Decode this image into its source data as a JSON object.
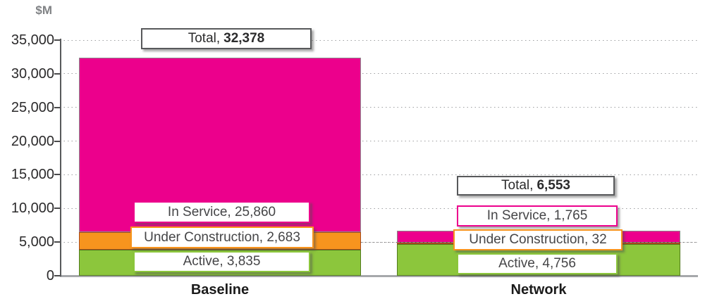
{
  "chart_data": {
    "type": "bar",
    "stacked": true,
    "unit_label": "$M",
    "categories": [
      "Baseline",
      "Network"
    ],
    "series": [
      {
        "name": "Active",
        "color": "#8CC63C",
        "stroke": "#527B1E",
        "values": [
          3835,
          4756
        ]
      },
      {
        "name": "Under Construction",
        "color": "#F7941E",
        "stroke": "#A8481B",
        "values": [
          2683,
          32
        ]
      },
      {
        "name": "In Service",
        "color": "#EC008C",
        "stroke": "#8C8C8C",
        "values": [
          25860,
          1765
        ]
      }
    ],
    "totals": [
      32378,
      6553
    ],
    "ylim": [
      0,
      35000
    ],
    "ytick_step": 5000,
    "yticks": [
      "0",
      "5,000",
      "10,000",
      "15,000",
      "20,000",
      "25,000",
      "30,000",
      "35,000"
    ],
    "grid": "horizontal-dotted",
    "legend_position": "none (inline data labels)"
  },
  "annotations": {
    "total_border_color": "#58595B",
    "groups": [
      {
        "category": "Baseline",
        "total": {
          "prefix": "Total,",
          "value": "32,378"
        },
        "segments": [
          {
            "label": "In Service, 25,860",
            "border": "#EC008C"
          },
          {
            "label": "Under Construction, 2,683",
            "border": "#F7941E"
          },
          {
            "label": "Active, 3,835",
            "border": "#8CC63C"
          }
        ]
      },
      {
        "category": "Network",
        "total": {
          "prefix": "Total,",
          "value": "6,553"
        },
        "segments": [
          {
            "label": "In Service, 1,765",
            "border": "#EC008C"
          },
          {
            "label": "Under Construction, 32",
            "border": "#F7941E"
          },
          {
            "label": "Active, 4,756",
            "border": "#8CC63C"
          }
        ]
      }
    ]
  }
}
